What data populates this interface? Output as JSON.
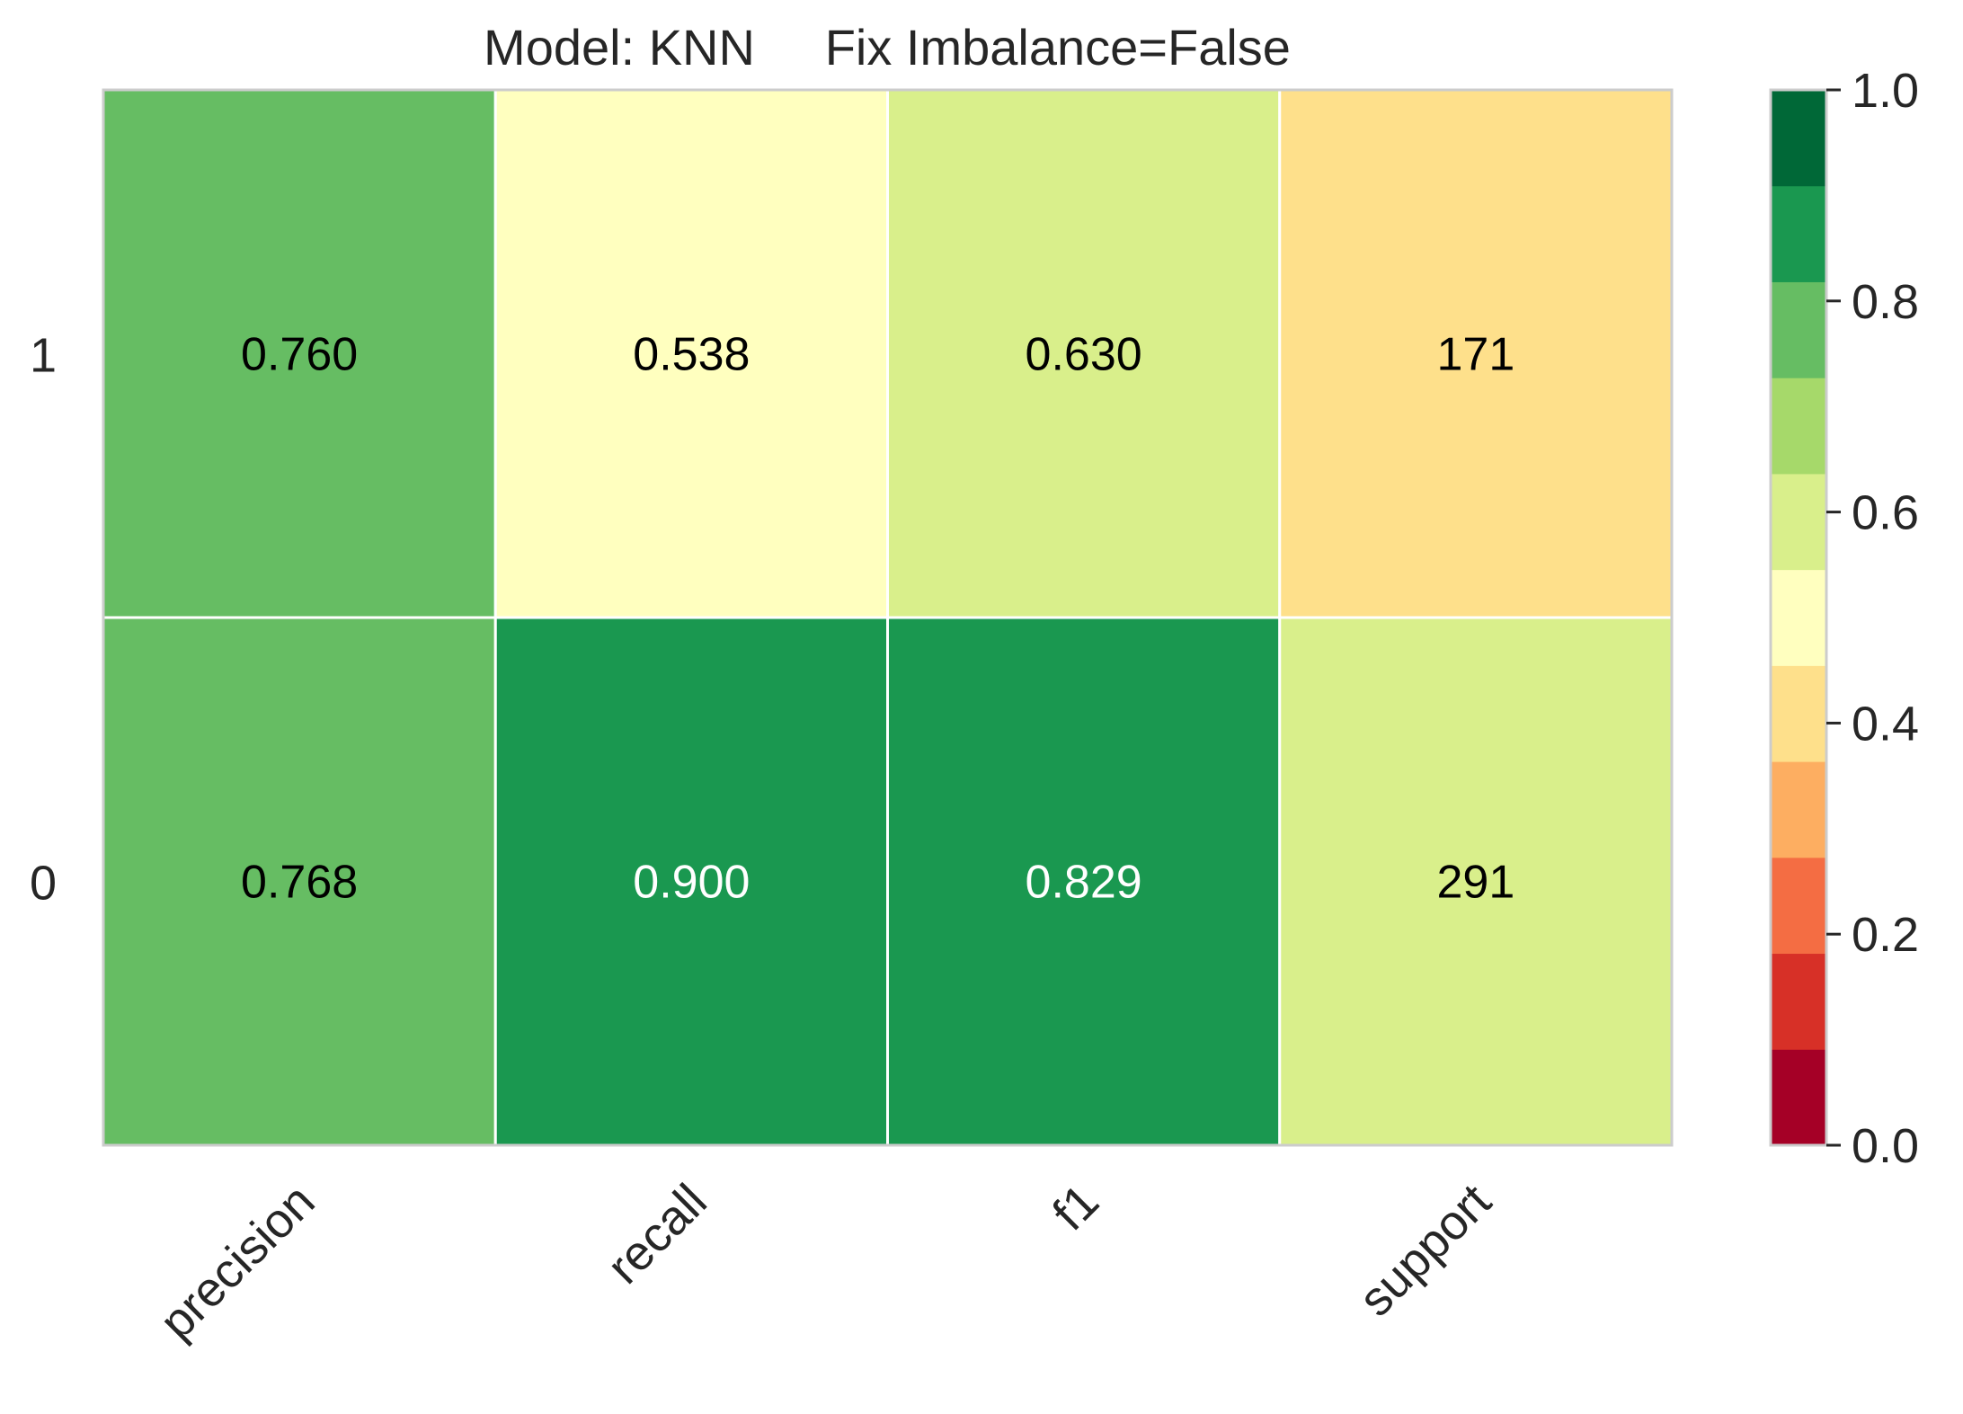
{
  "chart_data": {
    "type": "heatmap",
    "title": "Model: KNN     Fix Imbalance=False",
    "columns": [
      "precision",
      "recall",
      "f1",
      "support"
    ],
    "rows": [
      "1",
      "0"
    ],
    "cells": [
      [
        {
          "value": 0.76,
          "label": "0.760",
          "color_value": 0.76
        },
        {
          "value": 0.538,
          "label": "0.538",
          "color_value": 0.538
        },
        {
          "value": 0.63,
          "label": "0.630",
          "color_value": 0.63
        },
        {
          "value": 171,
          "label": "171",
          "color_value": 0.37
        }
      ],
      [
        {
          "value": 0.768,
          "label": "0.768",
          "color_value": 0.768
        },
        {
          "value": 0.9,
          "label": "0.900",
          "color_value": 0.9
        },
        {
          "value": 0.829,
          "label": "0.829",
          "color_value": 0.829
        },
        {
          "value": 291,
          "label": "291",
          "color_value": 0.63
        }
      ]
    ],
    "colorbar": {
      "range": [
        0.0,
        1.0
      ],
      "tick_labels": [
        "0.0",
        "0.2",
        "0.4",
        "0.6",
        "0.8",
        "1.0"
      ],
      "tick_values": [
        0.0,
        0.2,
        0.4,
        0.6,
        0.8,
        1.0
      ],
      "colors": [
        "#a50026",
        "#d73027",
        "#f46d43",
        "#fdae61",
        "#fee08b",
        "#ffffbf",
        "#d9ef8b",
        "#a6d96a",
        "#66bd63",
        "#1a9850",
        "#006837"
      ]
    },
    "grid": false
  }
}
